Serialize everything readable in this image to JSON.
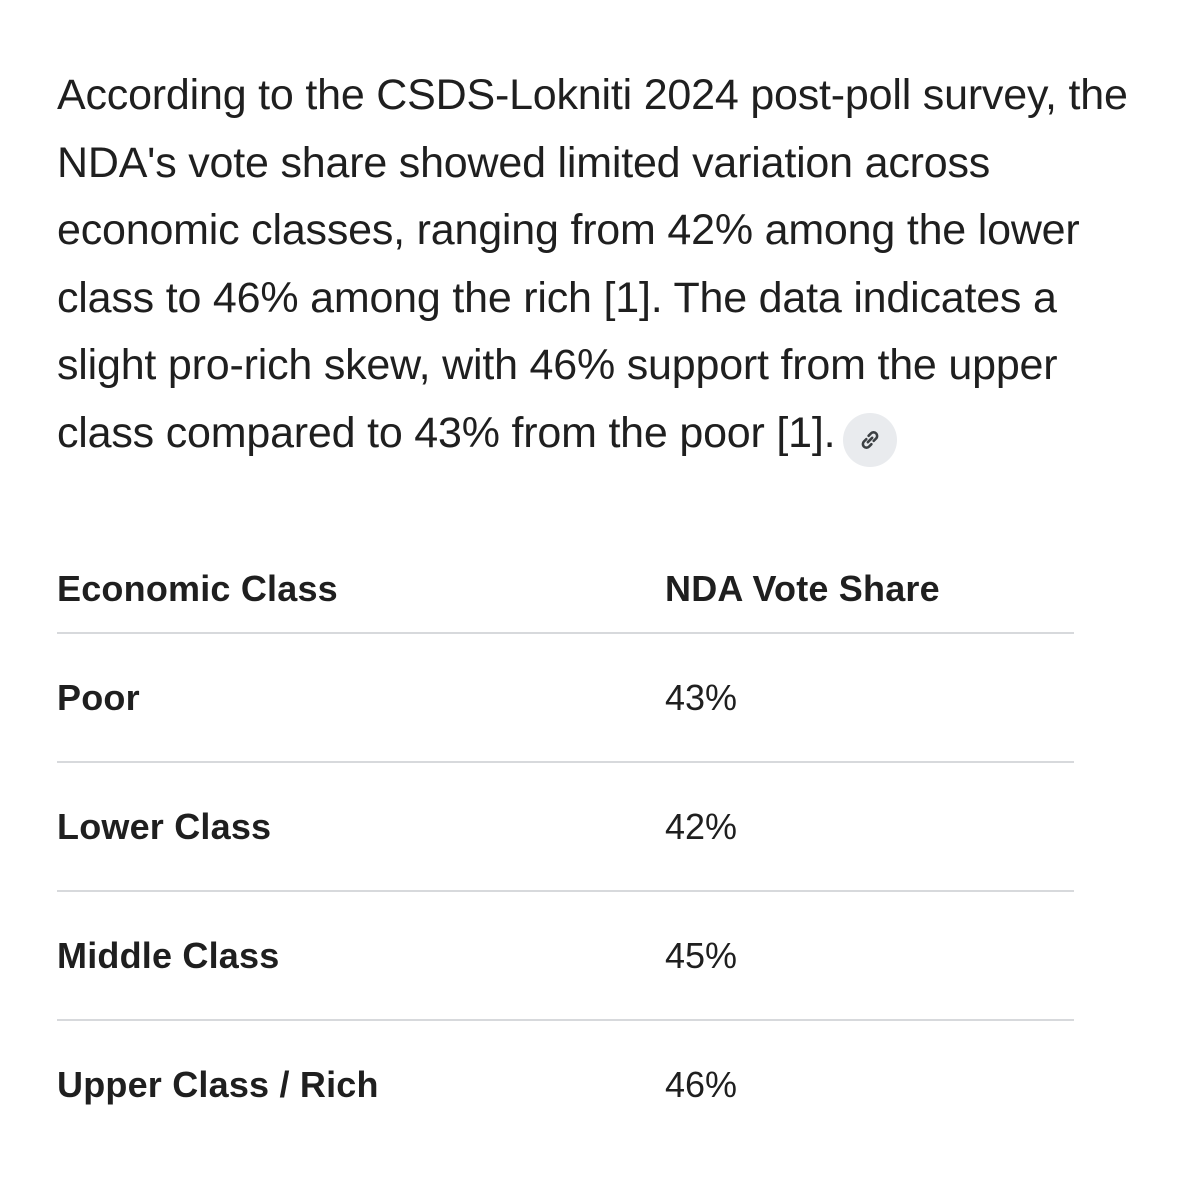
{
  "paragraph": {
    "text": "According to the CSDS-Lokniti 2024 post-poll survey, the NDA's vote share showed limited variation across economic classes, ranging from 42% among the lower class to 46% among the rich [1]. The data indicates a slight pro-rich skew, with 46% support from the upper class compared to 43% from the poor [1].",
    "link_icon": "link-icon"
  },
  "table": {
    "headers": [
      "Economic Class",
      "NDA Vote Share"
    ],
    "rows": [
      [
        "Poor",
        "43%"
      ],
      [
        "Lower Class",
        "42%"
      ],
      [
        "Middle Class",
        "45%"
      ],
      [
        "Upper Class / Rich",
        "46%"
      ]
    ]
  },
  "colors": {
    "text": "#1f1f1f",
    "divider": "#d7d9dc",
    "chip_bg": "#e9ebee"
  }
}
